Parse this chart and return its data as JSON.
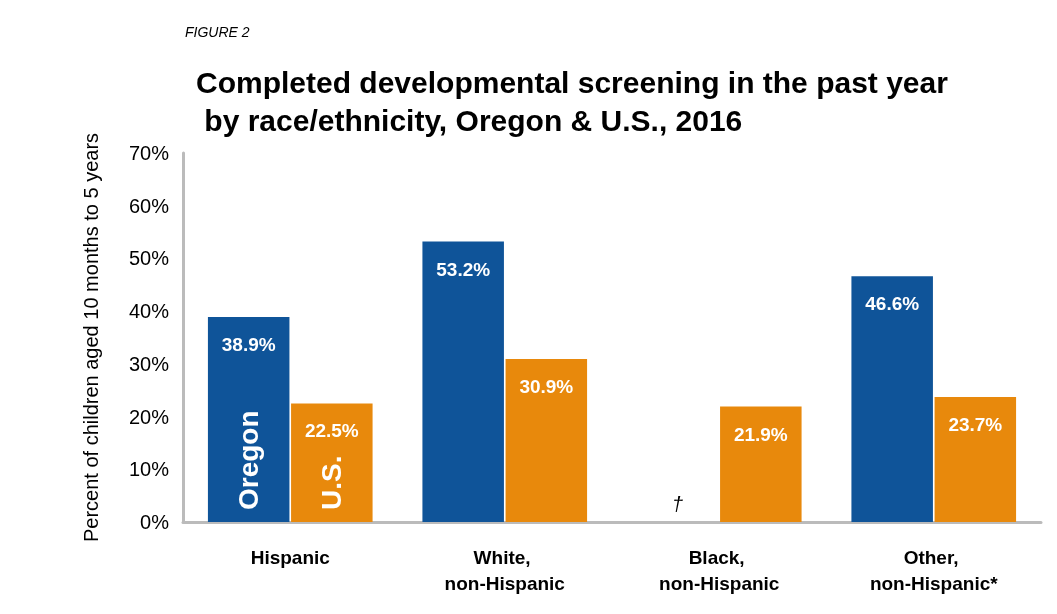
{
  "chart_data": {
    "type": "bar",
    "subtitle": "FIGURE 2",
    "title": "Completed developmental screening in the past year by race/ethnicity, Oregon & U.S., 2016",
    "ylabel": "Percent of children aged 10 months to 5 years",
    "categories": [
      "Hispanic",
      "White, non-Hispanic",
      "Black, non-Hispanic",
      "Other, non-Hispanic*"
    ],
    "series": [
      {
        "name": "Oregon",
        "color": "#0f5499",
        "values": [
          38.9,
          53.2,
          null,
          46.6
        ],
        "value_labels": [
          "38.9%",
          "53.2%",
          null,
          "46.6%"
        ]
      },
      {
        "name": "U.S.",
        "color": "#e8890c",
        "values": [
          22.5,
          30.9,
          21.9,
          23.7
        ],
        "value_labels": [
          "22.5%",
          "30.9%",
          "21.9%",
          "23.7%"
        ]
      }
    ],
    "annotations": [
      {
        "text": "†",
        "x": "Black, non-Hispanic",
        "y": 0
      }
    ],
    "ylim": [
      0,
      70
    ],
    "yticks": [
      {
        "value": 0,
        "label": "0%"
      },
      {
        "value": 10,
        "label": "10%"
      },
      {
        "value": 20,
        "label": "20%"
      },
      {
        "value": 30,
        "label": "30%"
      },
      {
        "value": 40,
        "label": "40%"
      },
      {
        "value": 50,
        "label": "50%"
      },
      {
        "value": 60,
        "label": "60%"
      },
      {
        "value": 70,
        "label": "70%"
      }
    ],
    "grid": false,
    "legend": false
  }
}
